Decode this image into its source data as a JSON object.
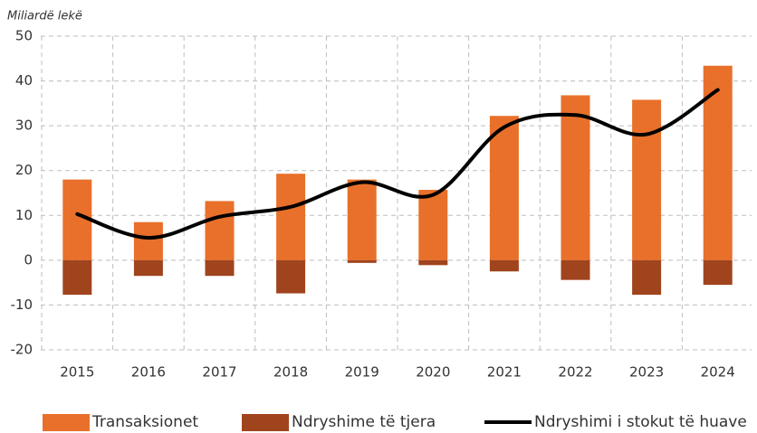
{
  "chart_data": {
    "type": "bar",
    "stacked": true,
    "y_label": "Miliardë lekë",
    "categories": [
      "2015",
      "2016",
      "2017",
      "2018",
      "2019",
      "2020",
      "2021",
      "2022",
      "2023",
      "2024"
    ],
    "series": [
      {
        "name": "Transaksionet",
        "type": "bar",
        "color": "#e8702a",
        "values": [
          18,
          8.5,
          13.2,
          19.3,
          18,
          15.7,
          32.2,
          36.8,
          35.8,
          43.4
        ]
      },
      {
        "name": "Ndryshime të tjera",
        "type": "bar",
        "color": "#a0441e",
        "values": [
          -7.7,
          -3.5,
          -3.5,
          -7.4,
          -0.6,
          -1.1,
          -2.5,
          -4.4,
          -7.7,
          -5.5
        ]
      },
      {
        "name": "Ndryshimi i stokut të huave",
        "type": "line",
        "color": "#000000",
        "values": [
          10.3,
          5,
          9.7,
          11.9,
          17.4,
          14.6,
          29.7,
          32.4,
          28.1,
          38
        ]
      }
    ],
    "ylim": [
      -20,
      50
    ],
    "yticks": [
      -20,
      -10,
      0,
      10,
      20,
      30,
      40,
      50
    ],
    "grid": true
  }
}
